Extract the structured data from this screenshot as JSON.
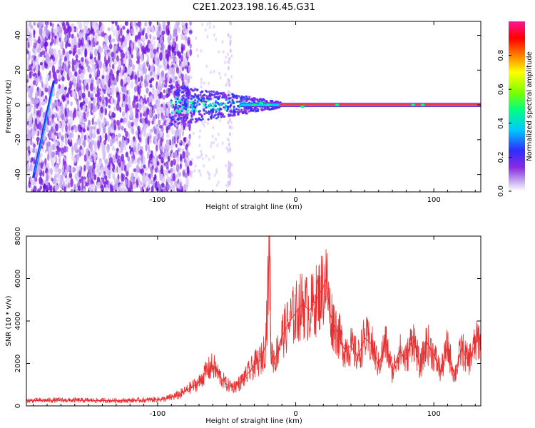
{
  "title": "C2E1.2023.198.16.45.G31",
  "colors": {
    "snr_line": "#e83030",
    "frame": "#000000",
    "dominant_line": "#e8403a",
    "low_amp": "#7a1ee8"
  },
  "chart_data": [
    {
      "type": "heatmap",
      "xlabel": "Height of straight line (km)",
      "ylabel": "Frequency (Hz)",
      "xlim": [
        -195,
        134
      ],
      "ylim": [
        -50,
        48
      ],
      "x_ticks": [
        -100,
        0,
        100
      ],
      "y_ticks": [
        -40,
        -20,
        0,
        20,
        40
      ],
      "grid": false,
      "colorbar": {
        "label": "Normalized spectral amplitude",
        "range": [
          0,
          1
        ],
        "ticks": [
          0.0,
          0.2,
          0.4,
          0.6,
          0.8
        ],
        "tick_labels": [
          "0.0",
          "0.2",
          "0.4",
          "0.6",
          "0.8"
        ],
        "colormap": [
          "#ffffff",
          "#c3a8f0",
          "#8a2be2",
          "#2d2dff",
          "#00c8ff",
          "#00ff80",
          "#7cff00",
          "#ffff00",
          "#ff8000",
          "#ff0000",
          "#ff1493"
        ]
      },
      "features": {
        "noise_region_x": [
          -195,
          -76
        ],
        "transition_region_x": [
          -92,
          -10
        ],
        "steady_line_x": [
          -10,
          134
        ],
        "steady_line_freq": 0,
        "chirp_x": [
          -190,
          -175
        ],
        "chirp_freq": [
          -42,
          14
        ]
      }
    },
    {
      "type": "line",
      "xlabel": "Height of straight line (km)",
      "ylabel": "SNR (10 * v/v)",
      "xlim": [
        -195,
        134
      ],
      "ylim": [
        0,
        8000
      ],
      "x_ticks": [
        -100,
        0,
        100
      ],
      "y_ticks": [
        0,
        2000,
        4000,
        6000,
        8000
      ],
      "grid": false,
      "series": [
        {
          "x": [
            -195,
            -170,
            -150,
            -130,
            -110,
            -95,
            -85,
            -80,
            -75,
            -70,
            -65,
            -60,
            -55,
            -50,
            -45,
            -40,
            -35,
            -30,
            -25,
            -22,
            -20,
            -19,
            -18,
            -15,
            -10,
            -5,
            0,
            5,
            10,
            15,
            20,
            22,
            25,
            30,
            35,
            40,
            45,
            50,
            55,
            60,
            65,
            70,
            75,
            80,
            85,
            90,
            95,
            100,
            105,
            110,
            115,
            120,
            125,
            130,
            134
          ],
          "values": [
            250,
            270,
            260,
            250,
            270,
            320,
            500,
            700,
            900,
            1100,
            1600,
            1900,
            1400,
            1000,
            900,
            1100,
            1500,
            1900,
            2200,
            2800,
            5500,
            8000,
            2500,
            2200,
            3300,
            3900,
            4400,
            4800,
            4500,
            5000,
            5600,
            6000,
            4300,
            3500,
            2700,
            2800,
            2300,
            3200,
            2900,
            1900,
            3000,
            1600,
            2600,
            2200,
            3300,
            1800,
            3000,
            2400,
            1600,
            2800,
            1400,
            2700,
            2100,
            2900,
            3300
          ]
        }
      ]
    }
  ]
}
